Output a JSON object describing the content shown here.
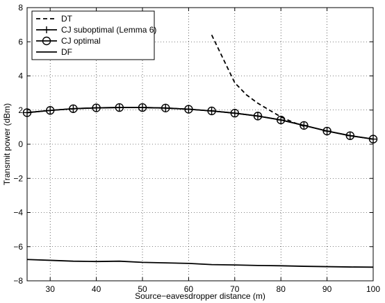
{
  "chart_data": {
    "type": "line",
    "xlabel": "Source−eavesdropper distance (m)",
    "ylabel": "Transmit power (dBm)",
    "xlim": [
      25,
      100
    ],
    "ylim": [
      -8,
      8
    ],
    "xticks": [
      30,
      40,
      50,
      60,
      70,
      80,
      90,
      100
    ],
    "yticks": [
      -8,
      -6,
      -4,
      -2,
      0,
      2,
      4,
      6,
      8
    ],
    "grid": true,
    "legend_position": "top-left",
    "series": [
      {
        "name": "DT",
        "style": "dashed",
        "marker": "none",
        "x": [
          65,
          67.5,
          70,
          72.5,
          75,
          77.5,
          80,
          82.5,
          85
        ],
        "y": [
          6.4,
          5.0,
          3.6,
          2.9,
          2.4,
          2.0,
          1.6,
          1.3,
          1.05
        ]
      },
      {
        "name": "CJ suboptimal (Lemma 6)",
        "style": "solid",
        "marker": "plus",
        "x": [
          25,
          30,
          35,
          40,
          45,
          50,
          55,
          60,
          65,
          70,
          75,
          80,
          85,
          90,
          95,
          100
        ],
        "y": [
          1.85,
          1.98,
          2.08,
          2.13,
          2.15,
          2.15,
          2.12,
          2.05,
          1.95,
          1.82,
          1.65,
          1.42,
          1.1,
          0.77,
          0.5,
          0.3
        ]
      },
      {
        "name": "CJ optimal",
        "style": "solid",
        "marker": "circle",
        "x": [
          25,
          30,
          35,
          40,
          45,
          50,
          55,
          60,
          65,
          70,
          75,
          80,
          85,
          90,
          95,
          100
        ],
        "y": [
          1.85,
          1.98,
          2.08,
          2.13,
          2.15,
          2.15,
          2.12,
          2.05,
          1.95,
          1.82,
          1.65,
          1.42,
          1.1,
          0.77,
          0.5,
          0.3
        ]
      },
      {
        "name": "DF",
        "style": "solid",
        "marker": "none",
        "x": [
          25,
          30,
          35,
          40,
          45,
          50,
          55,
          60,
          65,
          70,
          75,
          80,
          85,
          90,
          95,
          100
        ],
        "y": [
          -6.75,
          -6.8,
          -6.85,
          -6.87,
          -6.85,
          -6.92,
          -6.95,
          -6.98,
          -7.05,
          -7.07,
          -7.1,
          -7.12,
          -7.15,
          -7.17,
          -7.19,
          -7.2
        ]
      }
    ]
  }
}
